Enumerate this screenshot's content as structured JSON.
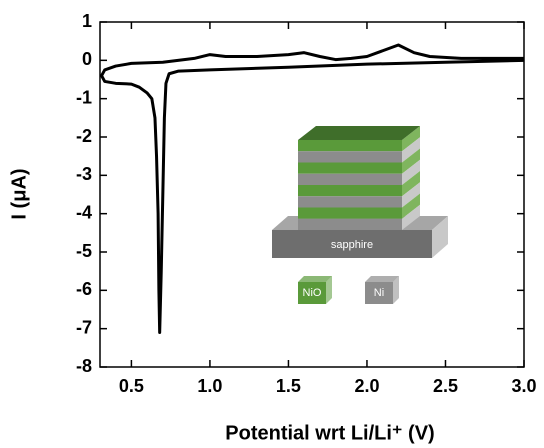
{
  "chart_data": {
    "type": "line",
    "x_label": "Potential wrt Li/Li⁺ (V)",
    "y_label": "I (μA)",
    "x": [
      3.0,
      2.5,
      2.0,
      1.5,
      1.0,
      0.8,
      0.74,
      0.72,
      0.71,
      0.7,
      0.69,
      0.68,
      0.675,
      0.67,
      0.66,
      0.65,
      0.63,
      0.6,
      0.55,
      0.5,
      0.4,
      0.33,
      0.31,
      0.33,
      0.4,
      0.5,
      0.7,
      0.9,
      1.0,
      1.1,
      1.3,
      1.5,
      1.6,
      1.7,
      1.8,
      1.9,
      2.0,
      2.1,
      2.2,
      2.3,
      2.4,
      2.6,
      3.0
    ],
    "series": [
      {
        "color": "#000000",
        "values": [
          0.0,
          -0.05,
          -0.1,
          -0.18,
          -0.25,
          -0.28,
          -0.35,
          -0.6,
          -1.5,
          -3.5,
          -5.5,
          -7.1,
          -6.0,
          -4.0,
          -2.5,
          -1.5,
          -1.0,
          -0.85,
          -0.7,
          -0.62,
          -0.6,
          -0.55,
          -0.4,
          -0.25,
          -0.15,
          -0.08,
          -0.05,
          0.05,
          0.15,
          0.1,
          0.1,
          0.15,
          0.2,
          0.1,
          0.02,
          0.05,
          0.1,
          0.25,
          0.4,
          0.2,
          0.1,
          0.05,
          0.05
        ]
      }
    ],
    "xlim": [
      0.3,
      3.0
    ],
    "xticks": [
      0.5,
      {
        "value": 1,
        "label": "1.0"
      },
      1.5,
      {
        "value": 2,
        "label": "2.0"
      },
      2.5,
      {
        "value": 3,
        "label": "3.0"
      }
    ],
    "ylim": [
      -8,
      1
    ],
    "yticks": [
      1,
      0,
      -1,
      -2,
      -3,
      -4,
      -5,
      -6,
      -7,
      -8
    ],
    "inset": {
      "substrate": "sapphire",
      "legend": [
        {
          "name": "NiO",
          "color": "#5a9a3a"
        },
        {
          "name": "Ni",
          "color": "#8c8c8c"
        }
      ]
    }
  }
}
